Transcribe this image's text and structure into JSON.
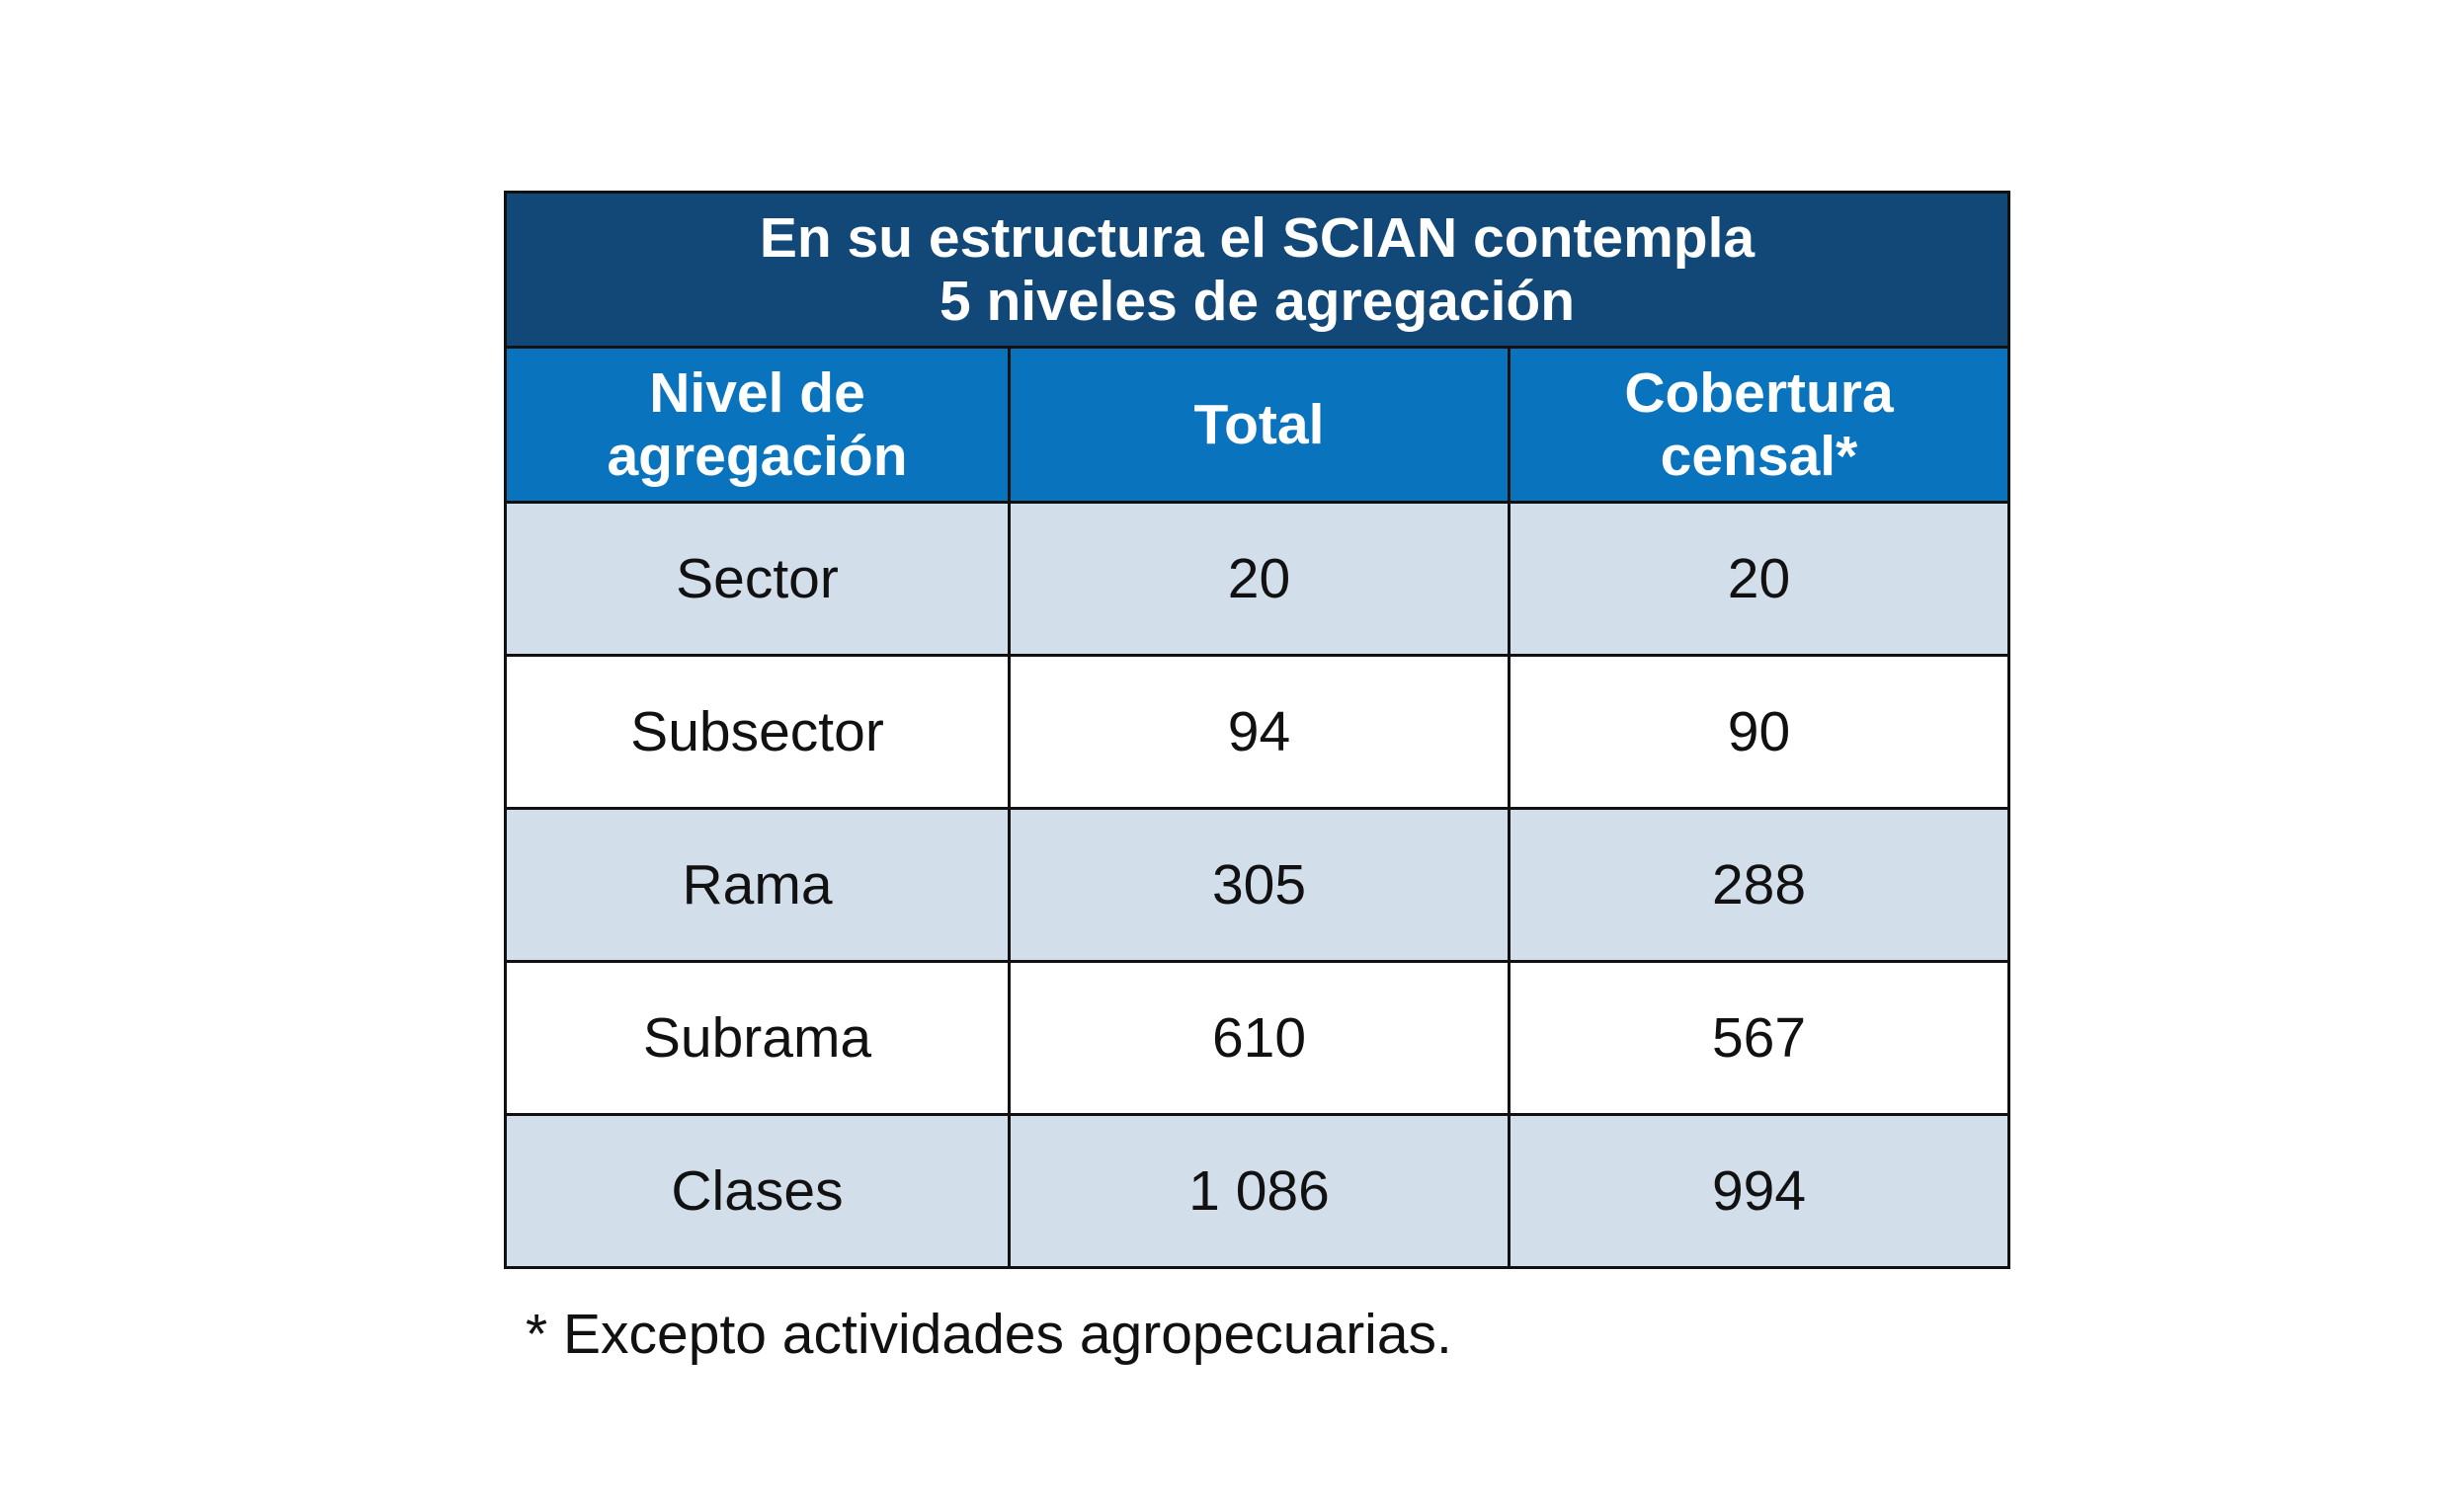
{
  "title": {
    "line1": "En su estructura el SCIAN contempla",
    "line2": "5 niveles de agregación"
  },
  "columns": {
    "level": {
      "line1": "Nivel de",
      "line2": "agregación"
    },
    "total": "Total",
    "coverage": {
      "line1": "Cobertura",
      "line2": "censal*"
    }
  },
  "rows": [
    {
      "level": "Sector",
      "total": "20",
      "coverage": "20"
    },
    {
      "level": "Subsector",
      "total": "94",
      "coverage": "90"
    },
    {
      "level": "Rama",
      "total": "305",
      "coverage": "288"
    },
    {
      "level": "Subrama",
      "total": "610",
      "coverage": "567"
    },
    {
      "level": "Clases",
      "total": "1 086",
      "coverage": "994"
    }
  ],
  "footnote": "* Excepto actividades agropecuarias.",
  "colors": {
    "title_bg": "#114878",
    "header_bg": "#0a73be",
    "row_shaded": "#d3deeb",
    "row_plain": "#ffffff"
  }
}
